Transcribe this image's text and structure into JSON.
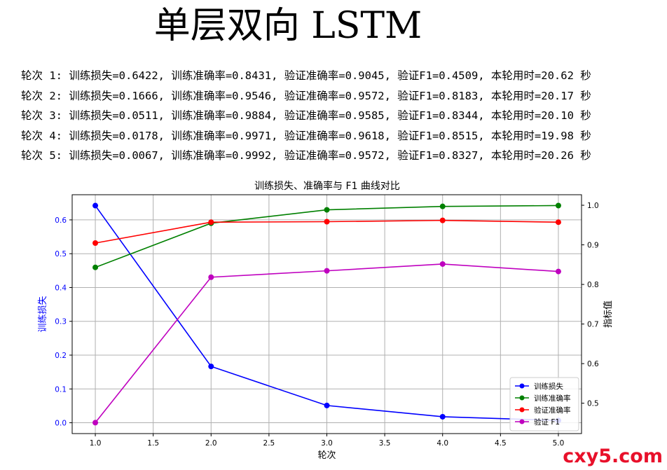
{
  "header": {
    "title": "单层双向 LSTM"
  },
  "log": [
    "轮次 1: 训练损失=0.6422, 训练准确率=0.8431, 验证准确率=0.9045, 验证F1=0.4509, 本轮用时=20.62 秒",
    "轮次 2: 训练损失=0.1666, 训练准确率=0.9546, 验证准确率=0.9572, 验证F1=0.8183, 本轮用时=20.17 秒",
    "轮次 3: 训练损失=0.0511, 训练准确率=0.9884, 验证准确率=0.9585, 验证F1=0.8344, 本轮用时=20.10 秒",
    "轮次 4: 训练损失=0.0178, 训练准确率=0.9971, 验证准确率=0.9618, 验证F1=0.8515, 本轮用时=19.98 秒",
    "轮次 5: 训练损失=0.0067, 训练准确率=0.9992, 验证准确率=0.9572, 验证F1=0.8327, 本轮用时=20.26 秒"
  ],
  "chart_data": {
    "type": "line",
    "title": "训练损失、准确率与 F1 曲线对比",
    "xlabel": "轮次",
    "ylabel_left": "训练损失",
    "ylabel_right": "指标值",
    "x": [
      1,
      2,
      3,
      4,
      5
    ],
    "xlim": [
      0.8,
      5.2
    ],
    "ylim_left": [
      -0.032,
      0.6744
    ],
    "ylim_right": [
      0.4233,
      1.0266
    ],
    "x_ticks": [
      1.0,
      1.5,
      2.0,
      2.5,
      3.0,
      3.5,
      4.0,
      4.5,
      5.0
    ],
    "x_tick_labels": [
      "1.0",
      "1.5",
      "2.0",
      "2.5",
      "3.0",
      "3.5",
      "4.0",
      "4.5",
      "5.0"
    ],
    "y_left_ticks": [
      0.0,
      0.1,
      0.2,
      0.3,
      0.4,
      0.5,
      0.6
    ],
    "y_left_tick_labels": [
      "0.0",
      "0.1",
      "0.2",
      "0.3",
      "0.4",
      "0.5",
      "0.6"
    ],
    "y_right_ticks": [
      0.5,
      0.6,
      0.7,
      0.8,
      0.9,
      1.0
    ],
    "y_right_tick_labels": [
      "0.5",
      "0.6",
      "0.7",
      "0.8",
      "0.9",
      "1.0"
    ],
    "grid": true,
    "legend_position": "bottom-right",
    "series": [
      {
        "name": "训练损失",
        "axis": "left",
        "color": "#0000ff",
        "values": [
          0.6422,
          0.1666,
          0.0511,
          0.0178,
          0.0067
        ]
      },
      {
        "name": "训练准确率",
        "axis": "right",
        "color": "#008000",
        "values": [
          0.8431,
          0.9546,
          0.9884,
          0.9971,
          0.9992
        ]
      },
      {
        "name": "验证准确率",
        "axis": "right",
        "color": "#ff0000",
        "values": [
          0.9045,
          0.9572,
          0.9585,
          0.9618,
          0.9572
        ]
      },
      {
        "name": "验证 F1",
        "axis": "right",
        "color": "#bf00bf",
        "values": [
          0.4509,
          0.8183,
          0.8344,
          0.8515,
          0.8327
        ]
      }
    ]
  },
  "watermark": {
    "text": "cxy5.com",
    "color": "#e8102a"
  }
}
